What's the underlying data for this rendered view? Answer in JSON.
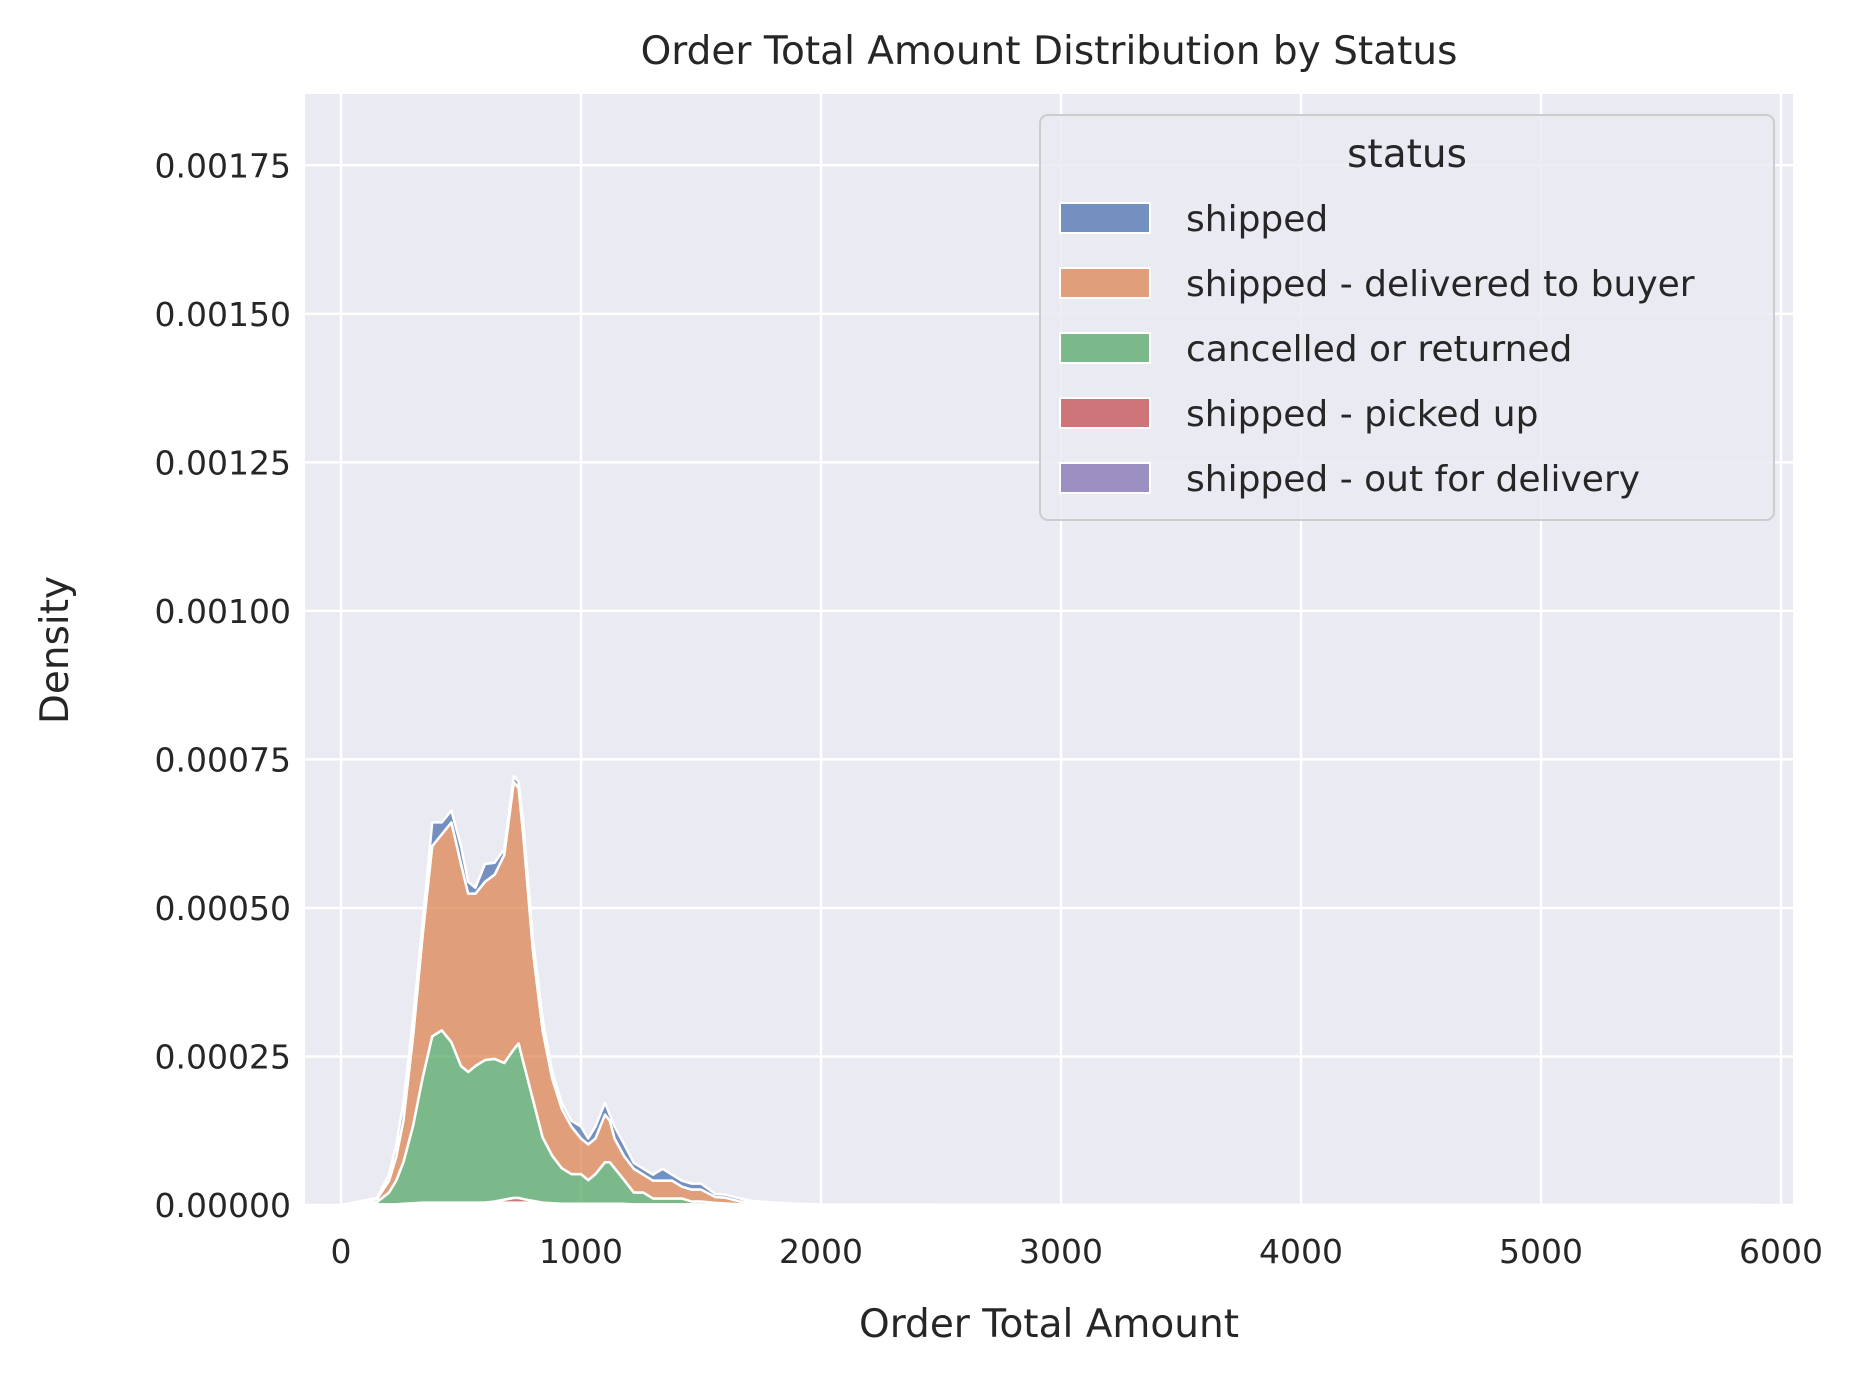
{
  "chart_data": {
    "type": "area",
    "stacked": true,
    "title": "Order Total Amount Distribution by Status",
    "xlabel": "Order Total Amount",
    "ylabel": "Density",
    "xlim": [
      -150,
      6050
    ],
    "ylim": [
      0,
      0.00187
    ],
    "x_ticks": [
      "0",
      "1000",
      "2000",
      "3000",
      "4000",
      "5000",
      "6000"
    ],
    "y_ticks": [
      "0.00000",
      "0.00025",
      "0.00050",
      "0.00075",
      "0.00100",
      "0.00125",
      "0.00150",
      "0.00175"
    ],
    "grid": true,
    "legend": {
      "title": "status",
      "placement": "top-right"
    },
    "x": [
      0,
      150,
      200,
      230,
      260,
      300,
      340,
      380,
      420,
      460,
      500,
      530,
      560,
      600,
      640,
      680,
      720,
      740,
      760,
      800,
      840,
      880,
      920,
      960,
      1000,
      1030,
      1060,
      1100,
      1120,
      1140,
      1180,
      1220,
      1260,
      1300,
      1340,
      1380,
      1420,
      1460,
      1500,
      1560,
      1600,
      1660,
      1720,
      1800,
      1900,
      2000,
      2500,
      3000,
      4000,
      5000,
      5900
    ],
    "series": [
      {
        "name": "shipped",
        "color": "#4c72b0",
        "values": [
          0,
          2e-06,
          1e-05,
          2e-05,
          3e-05,
          3e-05,
          2e-05,
          4e-05,
          2e-05,
          2e-05,
          3e-05,
          2e-05,
          1e-05,
          3e-05,
          2e-05,
          1e-05,
          1e-05,
          1e-05,
          2e-05,
          2e-05,
          2e-05,
          1e-05,
          1e-05,
          1e-05,
          2e-05,
          1e-05,
          2e-05,
          2e-05,
          1e-05,
          2e-05,
          2e-05,
          1e-05,
          1e-05,
          1e-05,
          2e-05,
          1e-05,
          1e-05,
          1e-05,
          1e-05,
          5e-06,
          5e-06,
          5e-06,
          3e-06,
          2e-06,
          1e-06,
          5e-07,
          2e-07,
          1e-07,
          0,
          0,
          0
        ]
      },
      {
        "name": "shipped - delivered to buyer",
        "color": "#dd8452",
        "values": [
          0,
          5e-06,
          2e-05,
          4e-05,
          7e-05,
          0.00015,
          0.00024,
          0.00032,
          0.00033,
          0.00037,
          0.00034,
          0.0003,
          0.00029,
          0.0003,
          0.00031,
          0.00035,
          0.00045,
          0.00043,
          0.00038,
          0.00025,
          0.00018,
          0.00013,
          0.0001,
          8e-05,
          6e-05,
          6e-05,
          6e-05,
          8e-05,
          7e-05,
          5e-05,
          4e-05,
          4e-05,
          3e-05,
          3e-05,
          3e-05,
          3e-05,
          2e-05,
          2e-05,
          2e-05,
          1e-05,
          1e-05,
          5e-06,
          3e-06,
          2e-06,
          1e-06,
          5e-07,
          2e-07,
          1e-07,
          0,
          0,
          0
        ]
      },
      {
        "name": "cancelled or returned",
        "color": "#55a868",
        "values": [
          0,
          4e-06,
          2e-05,
          4e-05,
          7e-05,
          0.00013,
          0.00021,
          0.00028,
          0.00029,
          0.00027,
          0.00023,
          0.00022,
          0.00023,
          0.00024,
          0.00024,
          0.00023,
          0.00025,
          0.00026,
          0.00023,
          0.00017,
          0.00011,
          8e-05,
          6e-05,
          5e-05,
          5e-05,
          4e-05,
          5e-05,
          7e-05,
          7e-05,
          6e-05,
          4e-05,
          2e-05,
          2e-05,
          1e-05,
          1e-05,
          1e-05,
          1e-05,
          5e-06,
          5e-06,
          3e-06,
          2e-06,
          1e-06,
          5e-07,
          2e-07,
          1e-07,
          0,
          0,
          0,
          0,
          0,
          0
        ]
      },
      {
        "name": "shipped - picked up",
        "color": "#c44e52",
        "values": [
          0,
          0,
          0,
          0,
          0,
          0,
          0,
          0,
          0,
          0,
          0,
          0,
          0,
          0,
          2e-06,
          5e-06,
          8e-06,
          8e-06,
          6e-06,
          3e-06,
          1e-06,
          0,
          0,
          0,
          0,
          0,
          0,
          0,
          0,
          0,
          0,
          0,
          0,
          0,
          0,
          0,
          0,
          0,
          0,
          0,
          0,
          0,
          0,
          0,
          0,
          0,
          0,
          0,
          0,
          0,
          0
        ]
      },
      {
        "name": "shipped - out for delivery",
        "color": "#8172b3",
        "values": [
          0,
          1e-06,
          1e-06,
          1e-06,
          2e-06,
          3e-06,
          4e-06,
          4e-06,
          4e-06,
          4e-06,
          4e-06,
          4e-06,
          4e-06,
          4e-06,
          4e-06,
          4e-06,
          4e-06,
          4e-06,
          4e-06,
          4e-06,
          3e-06,
          3e-06,
          2e-06,
          2e-06,
          2e-06,
          2e-06,
          2e-06,
          2e-06,
          2e-06,
          2e-06,
          2e-06,
          1e-06,
          1e-06,
          1e-06,
          1e-06,
          1e-06,
          1e-06,
          1e-06,
          1e-06,
          5e-07,
          5e-07,
          2e-07,
          1e-07,
          0,
          0,
          0,
          0,
          0,
          0,
          0,
          0
        ]
      }
    ]
  }
}
